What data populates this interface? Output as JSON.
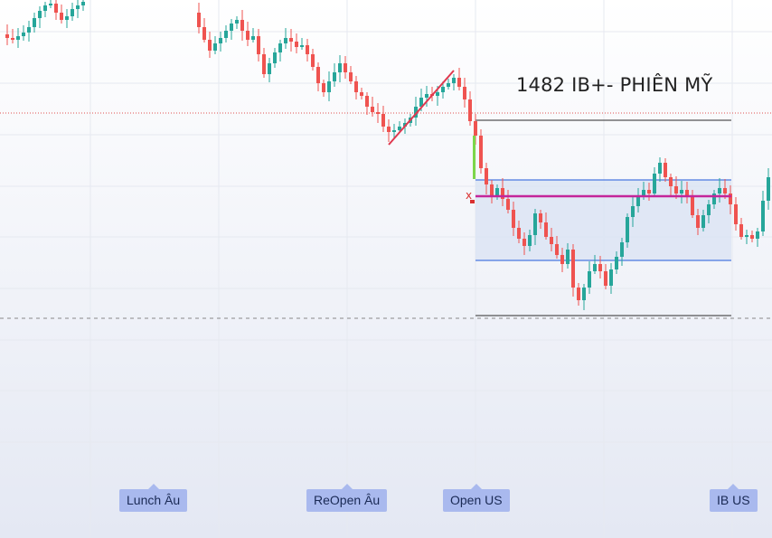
{
  "chart_data": {
    "type": "candlestick",
    "annotation": "1482 IB+- PHIÊN MỸ",
    "session_labels": [
      "Lunch Âu",
      "ReOpen Âu",
      "Open US",
      "IB US"
    ],
    "marker": "x",
    "colors": {
      "up": "#26a69a",
      "down": "#ef5350",
      "band_fill": "#dbe3f4",
      "band_line": "#4a78e0",
      "magenta_line": "#c4259a",
      "range_line": "#555555",
      "trend_line": "#e0384f",
      "open_bar": "#7cd64b",
      "label_bg": "#a9b9ee"
    },
    "grid": true
  }
}
